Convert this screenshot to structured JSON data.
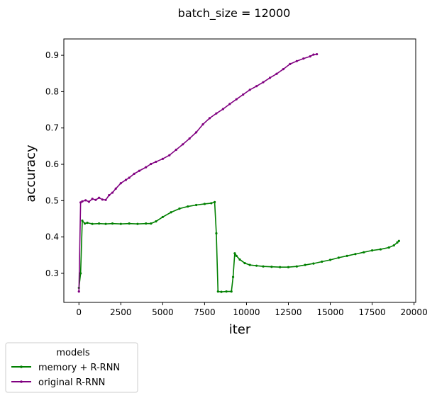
{
  "chart_data": {
    "type": "line",
    "title": "batch_size = 12000",
    "xlabel": "iter",
    "ylabel": "accuracy",
    "xlim": [
      -900,
      20100
    ],
    "ylim": [
      0.22,
      0.945
    ],
    "xticks": [
      0,
      2500,
      5000,
      7500,
      10000,
      12500,
      15000,
      17500,
      20000
    ],
    "xtick_labels": [
      "0",
      "2500",
      "5000",
      "7500",
      "10000",
      "12500",
      "15000",
      "17500",
      "20000"
    ],
    "yticks": [
      0.3,
      0.4,
      0.5,
      0.6,
      0.7,
      0.8,
      0.9
    ],
    "ytick_labels": [
      "0.3",
      "0.4",
      "0.5",
      "0.6",
      "0.7",
      "0.8",
      "0.9"
    ],
    "grid": false,
    "legend": {
      "title": "models",
      "placement": "below-left"
    },
    "series": [
      {
        "name": "memory + R-RNN",
        "color": "#008000",
        "x": [
          0,
          100,
          200,
          350,
          500,
          800,
          1200,
          1600,
          2000,
          2500,
          3000,
          3500,
          4000,
          4300,
          4600,
          5000,
          5500,
          6000,
          6500,
          7000,
          7500,
          7900,
          8100,
          8200,
          8300,
          8500,
          8800,
          9100,
          9200,
          9300,
          9400,
          9600,
          9900,
          10200,
          10600,
          11000,
          11500,
          12000,
          12500,
          13000,
          13500,
          14000,
          14500,
          15000,
          15500,
          16000,
          16500,
          17000,
          17500,
          18000,
          18500,
          18800,
          19000,
          19100
        ],
        "values": [
          0.26,
          0.3,
          0.445,
          0.437,
          0.439,
          0.436,
          0.437,
          0.436,
          0.437,
          0.436,
          0.437,
          0.436,
          0.437,
          0.437,
          0.443,
          0.455,
          0.468,
          0.478,
          0.484,
          0.488,
          0.491,
          0.493,
          0.496,
          0.41,
          0.25,
          0.249,
          0.25,
          0.25,
          0.29,
          0.355,
          0.348,
          0.338,
          0.328,
          0.323,
          0.321,
          0.319,
          0.318,
          0.317,
          0.317,
          0.319,
          0.323,
          0.327,
          0.332,
          0.337,
          0.343,
          0.348,
          0.353,
          0.358,
          0.363,
          0.366,
          0.371,
          0.377,
          0.385,
          0.389
        ]
      },
      {
        "name": "original R-RNN",
        "color": "#800080",
        "x": [
          0,
          100,
          200,
          400,
          600,
          800,
          1000,
          1200,
          1400,
          1600,
          1800,
          2000,
          2200,
          2500,
          2800,
          3000,
          3300,
          3600,
          4000,
          4300,
          4600,
          5000,
          5400,
          5800,
          6200,
          6600,
          7000,
          7400,
          7800,
          8200,
          8600,
          9000,
          9400,
          9800,
          10200,
          10600,
          11000,
          11400,
          11800,
          12200,
          12600,
          13000,
          13400,
          13800,
          14000,
          14200
        ],
        "values": [
          0.25,
          0.495,
          0.498,
          0.501,
          0.497,
          0.505,
          0.502,
          0.508,
          0.503,
          0.502,
          0.515,
          0.522,
          0.533,
          0.548,
          0.557,
          0.563,
          0.574,
          0.582,
          0.592,
          0.601,
          0.607,
          0.615,
          0.625,
          0.64,
          0.655,
          0.671,
          0.688,
          0.71,
          0.727,
          0.74,
          0.752,
          0.766,
          0.779,
          0.792,
          0.805,
          0.815,
          0.826,
          0.838,
          0.849,
          0.862,
          0.876,
          0.884,
          0.891,
          0.897,
          0.902,
          0.903
        ]
      }
    ]
  }
}
